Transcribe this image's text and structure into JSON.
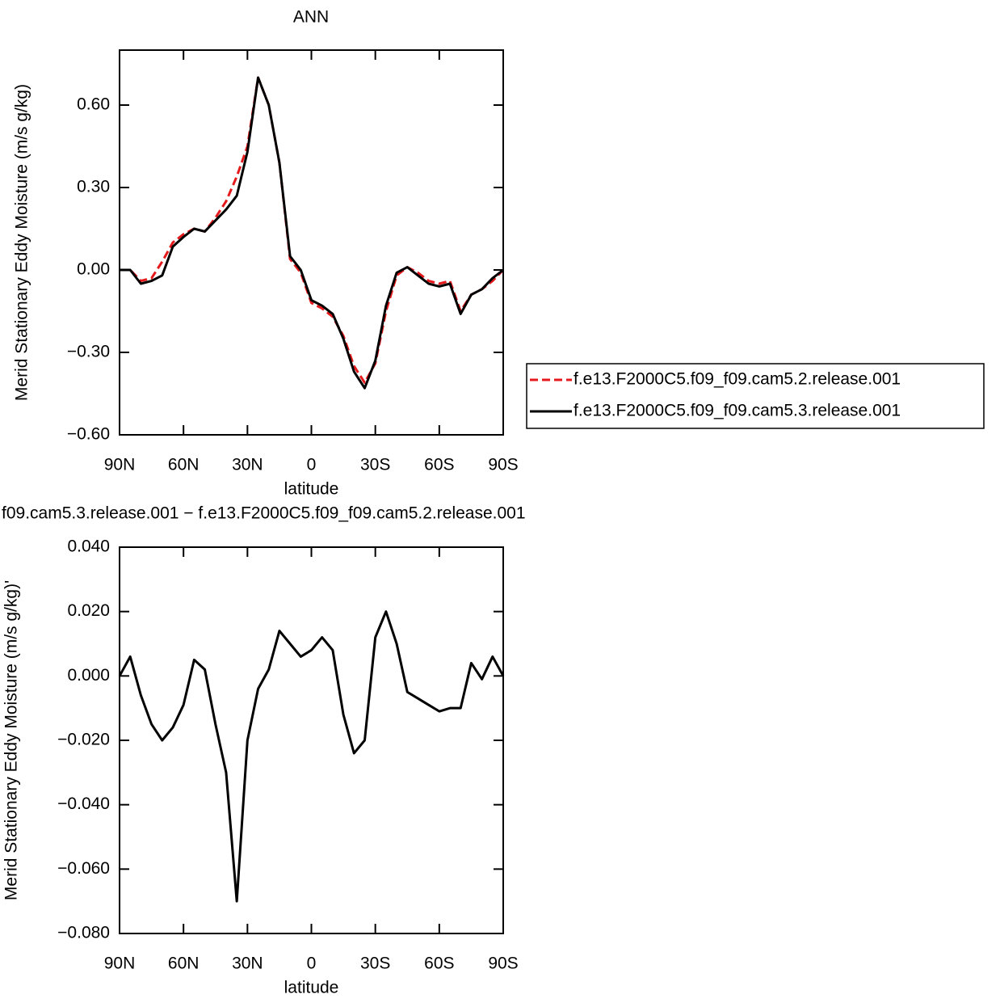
{
  "chart_data": [
    {
      "type": "line",
      "title": "ANN",
      "x_label": "latitude",
      "y_label": "Merid Stationary Eddy Moisture (m/s g/kg)",
      "x": [
        90,
        85,
        80,
        75,
        70,
        65,
        60,
        55,
        50,
        45,
        40,
        35,
        30,
        25,
        20,
        15,
        10,
        5,
        0,
        -5,
        -10,
        -15,
        -20,
        -25,
        -30,
        -35,
        -40,
        -45,
        -50,
        -55,
        -60,
        -65,
        -70,
        -75,
        -80,
        -85,
        -90
      ],
      "xlim": [
        90,
        -90
      ],
      "xticks": [
        {
          "value": 90,
          "label": "90N"
        },
        {
          "value": 60,
          "label": "60N"
        },
        {
          "value": 30,
          "label": "30N"
        },
        0,
        {
          "value": -30,
          "label": "30S"
        },
        {
          "value": -60,
          "label": "60S"
        },
        {
          "value": -90,
          "label": "90S"
        }
      ],
      "ylim": [
        -0.6,
        0.8
      ],
      "yticks": [
        {
          "value": 0.6,
          "label": "0.60"
        },
        {
          "value": 0.3,
          "label": "0.30"
        },
        {
          "value": 0,
          "label": "0.00"
        },
        {
          "value": -0.3,
          "label": "−0.30"
        },
        {
          "value": -0.6,
          "label": "−0.60"
        }
      ],
      "legend": "right",
      "series": [
        {
          "name": "f.e13.F2000C5.f09_f09.cam5.2.release.001",
          "color": "#e41a1c",
          "dashed": true,
          "values": [
            0,
            0,
            -0.04,
            -0.03,
            0.03,
            0.1,
            0.13,
            0.15,
            0.14,
            0.19,
            0.25,
            0.34,
            0.45,
            0.7,
            0.6,
            0.39,
            0.04,
            -0.01,
            -0.12,
            -0.14,
            -0.17,
            -0.24,
            -0.35,
            -0.41,
            -0.34,
            -0.15,
            -0.02,
            0.01,
            -0.01,
            -0.04,
            -0.05,
            -0.04,
            -0.15,
            -0.09,
            -0.07,
            -0.04,
            0
          ]
        },
        {
          "name": "f.e13.F2000C5.f09_f09.cam5.3.release.001",
          "color": "#000000",
          "dashed": false,
          "values": [
            0,
            0,
            -0.05,
            -0.04,
            -0.02,
            0.085,
            0.12,
            0.15,
            0.14,
            0.18,
            0.22,
            0.27,
            0.43,
            0.7,
            0.6,
            0.39,
            0.05,
            0,
            -0.11,
            -0.13,
            -0.16,
            -0.25,
            -0.37,
            -0.43,
            -0.33,
            -0.13,
            -0.01,
            0.01,
            -0.02,
            -0.05,
            -0.06,
            -0.05,
            -0.16,
            -0.09,
            -0.07,
            -0.03,
            0
          ]
        }
      ]
    },
    {
      "type": "line",
      "title": "f09.cam5.3.release.001 − f.e13.F2000C5.f09_f09.cam5.2.release.001",
      "x_label": "latitude",
      "y_label": "Merid Stationary Eddy Moisture (m/s g/kg)'",
      "x": [
        90,
        85,
        80,
        75,
        70,
        65,
        60,
        55,
        50,
        45,
        40,
        35,
        30,
        25,
        20,
        15,
        10,
        5,
        0,
        -5,
        -10,
        -15,
        -20,
        -25,
        -30,
        -35,
        -40,
        -45,
        -50,
        -55,
        -60,
        -65,
        -70,
        -75,
        -80,
        -85,
        -90
      ],
      "xlim": [
        90,
        -90
      ],
      "xticks": [
        {
          "value": 90,
          "label": "90N"
        },
        {
          "value": 60,
          "label": "60N"
        },
        {
          "value": 30,
          "label": "30N"
        },
        0,
        {
          "value": -30,
          "label": "30S"
        },
        {
          "value": -60,
          "label": "60S"
        },
        {
          "value": -90,
          "label": "90S"
        }
      ],
      "ylim": [
        -0.08,
        0.04
      ],
      "yticks": [
        {
          "value": 0.04,
          "label": "0.040"
        },
        {
          "value": 0.02,
          "label": "0.020"
        },
        {
          "value": 0,
          "label": "0.000"
        },
        {
          "value": -0.02,
          "label": "−0.020"
        },
        {
          "value": -0.04,
          "label": "−0.040"
        },
        {
          "value": -0.06,
          "label": "−0.060"
        },
        {
          "value": -0.08,
          "label": "−0.080"
        }
      ],
      "series": [
        {
          "color": "#000000",
          "dashed": false,
          "values": [
            0,
            0.006,
            -0.006,
            -0.015,
            -0.02,
            -0.016,
            -0.009,
            0.005,
            0.002,
            -0.015,
            -0.03,
            -0.07,
            -0.02,
            -0.004,
            0.002,
            0.014,
            0.01,
            0.006,
            0.008,
            0.012,
            0.008,
            -0.012,
            -0.024,
            -0.02,
            0.012,
            0.02,
            0.01,
            -0.005,
            -0.007,
            -0.009,
            -0.011,
            -0.01,
            -0.01,
            0.004,
            -0.001,
            0.006,
            0
          ]
        }
      ]
    }
  ]
}
